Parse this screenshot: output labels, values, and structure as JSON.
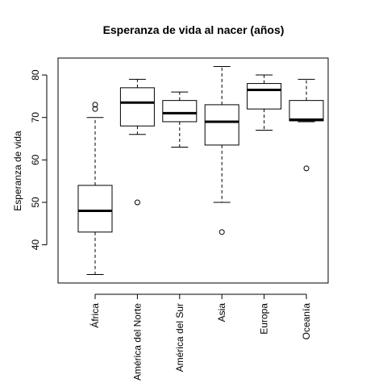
{
  "chart_data": {
    "type": "boxplot",
    "title": "Esperanza de vida al nacer (años)",
    "xlabel": "",
    "ylabel": "Esperanza de vida",
    "ylim": [
      31,
      84
    ],
    "yticks": [
      40,
      50,
      60,
      70,
      80
    ],
    "categories": [
      "África",
      "América del Norte",
      "América del Sur",
      "Asia",
      "Europa",
      "Oceanía"
    ],
    "boxes": [
      {
        "category": "África",
        "whisker_low": 33,
        "q1": 43,
        "median": 48,
        "q3": 54,
        "whisker_high": 70,
        "outliers": [
          72,
          73
        ]
      },
      {
        "category": "América del Norte",
        "whisker_low": 66,
        "q1": 68,
        "median": 73.5,
        "q3": 77,
        "whisker_high": 79,
        "outliers": [
          50
        ]
      },
      {
        "category": "América del Sur",
        "whisker_low": 63,
        "q1": 69,
        "median": 71,
        "q3": 74,
        "whisker_high": 76,
        "outliers": []
      },
      {
        "category": "Asia",
        "whisker_low": 50,
        "q1": 63.5,
        "median": 69,
        "q3": 73,
        "whisker_high": 82,
        "outliers": [
          43
        ]
      },
      {
        "category": "Europa",
        "whisker_low": 67,
        "q1": 72,
        "median": 76.5,
        "q3": 78,
        "whisker_high": 80,
        "outliers": []
      },
      {
        "category": "Oceanía",
        "whisker_low": 69,
        "q1": 69.2,
        "median": 69.5,
        "q3": 74,
        "whisker_high": 79,
        "outliers": [
          58
        ]
      }
    ]
  }
}
